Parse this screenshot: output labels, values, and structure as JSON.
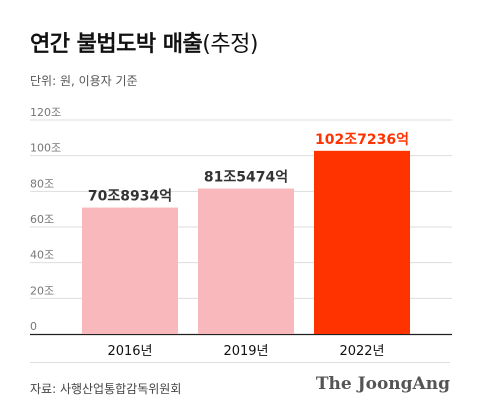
{
  "header": {
    "title": "연간 불법도박 매출",
    "title_paren": "(추정)",
    "subtitle": "단위: 원, 이용자 기준"
  },
  "footer": {
    "source": "자료: 사행산업통합감독위원회",
    "brand": "The JoongAng"
  },
  "colors": {
    "bar_normal": "#f9b8bc",
    "bar_highlight": "#ff3300",
    "label_normal": "#333333",
    "label_highlight": "#ff3300",
    "gridline": "#dddddd"
  },
  "chart_data": {
    "type": "bar",
    "categories": [
      "2016년",
      "2019년",
      "2022년"
    ],
    "values": [
      70.8934,
      81.5474,
      102.7236
    ],
    "data_labels": [
      "70조8934억",
      "81조5474억",
      "102조7236억"
    ],
    "highlight_index": 2,
    "title": "연간 불법도박 매출(추정)",
    "ylabel": "",
    "xlabel": "",
    "ylim": [
      0,
      120
    ],
    "yticks": [
      0,
      20,
      40,
      60,
      80,
      100,
      120
    ],
    "ytick_labels": [
      "0",
      "20조",
      "40조",
      "60조",
      "80조",
      "100조",
      "120조"
    ],
    "grid": true,
    "legend": "none"
  }
}
